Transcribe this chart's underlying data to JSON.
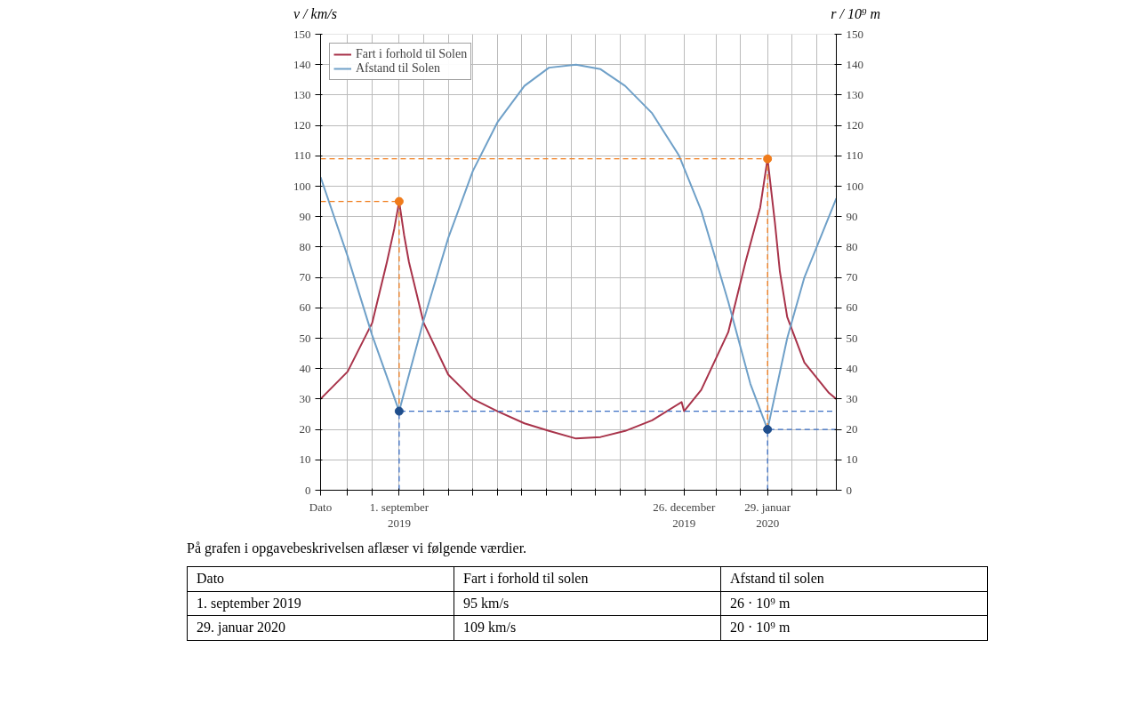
{
  "chart_data": {
    "type": "line",
    "ylabel": "v / km/s",
    "y2label": "r / 10⁹ m",
    "xlim": [
      "2019-07-31",
      "2020-02-26"
    ],
    "xticks": [
      {
        "value": "2019-07-31",
        "label": "Dato"
      },
      {
        "value": "2019-08-11",
        "label": null
      },
      {
        "value": "2019-08-21",
        "label": null
      },
      {
        "value": "2019-09-01",
        "label": "1. september\n2019"
      },
      {
        "value": "2019-09-11",
        "label": null
      },
      {
        "value": "2019-09-21",
        "label": null
      },
      {
        "value": "2019-10-01",
        "label": null
      },
      {
        "value": "2019-10-11",
        "label": null
      },
      {
        "value": "2019-10-21",
        "label": null
      },
      {
        "value": "2019-10-31",
        "label": null
      },
      {
        "value": "2019-11-10",
        "label": null
      },
      {
        "value": "2019-11-20",
        "label": null
      },
      {
        "value": "2019-11-30",
        "label": null
      },
      {
        "value": "2019-12-10",
        "label": null
      },
      {
        "value": "2019-12-26",
        "label": "26. december\n2019"
      },
      {
        "value": "2020-01-08",
        "label": null
      },
      {
        "value": "2020-01-18",
        "label": null
      },
      {
        "value": "2020-01-29",
        "label": "29. januar\n2020"
      },
      {
        "value": "2020-02-08",
        "label": null
      },
      {
        "value": "2020-02-18",
        "label": null
      }
    ],
    "ylim": [
      0,
      150
    ],
    "yticks": [
      0,
      10,
      20,
      30,
      40,
      50,
      60,
      70,
      80,
      90,
      100,
      110,
      120,
      130,
      140,
      150
    ],
    "y2lim": [
      0,
      150
    ],
    "y2ticks": [
      0,
      10,
      20,
      30,
      40,
      50,
      60,
      70,
      80,
      90,
      100,
      110,
      120,
      130,
      140,
      150
    ],
    "grid": true,
    "legend": "top left",
    "marker": "none",
    "line_style": "solid",
    "series": [
      {
        "name": "Fart i forhold til Solen",
        "color": "#a8334a",
        "x": [
          "2019-07-31",
          "2019-08-11",
          "2019-08-21",
          "2019-08-27",
          "2019-08-30",
          "2019-09-01",
          "2019-09-03",
          "2019-09-05",
          "2019-09-11",
          "2019-09-21",
          "2019-10-01",
          "2019-10-11",
          "2019-10-22",
          "2019-11-01",
          "2019-11-12",
          "2019-11-22",
          "2019-12-02",
          "2019-12-13",
          "2019-12-25",
          "2019-12-26",
          "2020-01-02",
          "2020-01-13",
          "2020-01-20",
          "2020-01-26",
          "2020-01-29",
          "2020-02-01",
          "2020-02-03",
          "2020-02-06",
          "2020-02-13",
          "2020-02-23",
          "2020-02-26"
        ],
        "values": [
          30,
          39,
          55,
          75,
          86,
          95,
          84,
          75,
          55,
          38,
          30,
          26,
          22,
          19.5,
          17,
          17.5,
          19.5,
          23,
          29,
          26,
          33,
          52,
          75,
          93,
          109,
          88,
          72,
          57,
          42,
          32,
          30
        ]
      },
      {
        "name": "Afstand til Solen",
        "color": "#6fa0c8",
        "x": [
          "2019-07-31",
          "2019-08-11",
          "2019-08-21",
          "2019-09-01",
          "2019-09-11",
          "2019-09-21",
          "2019-10-01",
          "2019-10-11",
          "2019-10-22",
          "2019-11-01",
          "2019-11-12",
          "2019-11-22",
          "2019-12-02",
          "2019-12-13",
          "2019-12-24",
          "2020-01-02",
          "2020-01-13",
          "2020-01-22",
          "2020-01-29",
          "2020-02-06",
          "2020-02-13",
          "2020-02-26"
        ],
        "values": [
          103,
          77,
          51,
          26,
          56,
          83,
          105,
          121,
          133,
          139,
          140,
          138.5,
          133,
          124,
          110,
          92,
          62,
          35,
          20,
          50,
          70,
          96
        ]
      },
      {
        "color": "#f07b1a",
        "line_style": "dashed",
        "x": [
          "2019-07-31",
          "2019-09-01",
          "2019-09-01"
        ],
        "values": [
          95,
          95,
          26
        ]
      },
      {
        "color": "#f07b1a",
        "line_style": "dashed",
        "x": [
          "2019-07-31",
          "2020-01-29",
          "2020-01-29"
        ],
        "values": [
          109,
          109,
          20
        ]
      },
      {
        "color": "#3b6fc4",
        "line_style": "dashed",
        "x": [
          "2019-09-01",
          "2019-09-01",
          "2020-02-26"
        ],
        "values": [
          0,
          26,
          26
        ]
      },
      {
        "color": "#3b6fc4",
        "line_style": "dashed",
        "x": [
          "2020-01-29",
          "2020-01-29",
          "2020-02-26"
        ],
        "values": [
          0,
          20,
          20
        ]
      },
      {
        "type": "scatter",
        "marker": "circle",
        "color": "#f07b1a",
        "x": [
          "2019-09-01",
          "2020-01-29"
        ],
        "values": [
          95,
          109
        ]
      },
      {
        "type": "scatter",
        "marker": "circle",
        "color": "#1f4e8c",
        "x": [
          "2019-09-01",
          "2020-01-29"
        ],
        "values": [
          26,
          20
        ]
      }
    ],
    "annotations": [
      "På grafen i opgavebeskrivelsen aflæser vi følgende værdier.",
      "Dato",
      "Fart i forhold til solen",
      "Afstand til solen",
      "1. september 2019",
      "95 km/s",
      "26 · 10⁹ m",
      "29. januar 2020",
      "109 km/s",
      "20 · 10⁹ m"
    ]
  }
}
